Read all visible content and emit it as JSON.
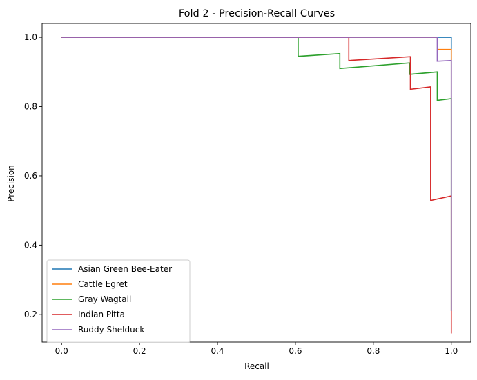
{
  "chart_data": {
    "type": "line",
    "title": "Fold 2 - Precision-Recall Curves",
    "xlabel": "Recall",
    "ylabel": "Precision",
    "xlim": [
      -0.05,
      1.05
    ],
    "ylim": [
      0.12,
      1.04
    ],
    "xticks": [
      0.0,
      0.2,
      0.4,
      0.6,
      0.8,
      1.0
    ],
    "xtick_labels": [
      "0.0",
      "0.2",
      "0.4",
      "0.6",
      "0.8",
      "1.0"
    ],
    "yticks": [
      0.2,
      0.4,
      0.6,
      0.8,
      1.0
    ],
    "ytick_labels": [
      "0.2",
      "0.4",
      "0.6",
      "0.8",
      "1.0"
    ],
    "grid": false,
    "legend_position": "bottom-left",
    "series": [
      {
        "name": "Asian Green Bee-Eater",
        "color": "#1f77b4",
        "points": [
          [
            0.0,
            1.0
          ],
          [
            1.0,
            1.0
          ],
          [
            1.0,
            0.21
          ]
        ]
      },
      {
        "name": "Cattle Egret",
        "color": "#ff7f0e",
        "points": [
          [
            0.0,
            1.0
          ],
          [
            0.965,
            1.0
          ],
          [
            0.965,
            0.965
          ],
          [
            1.0,
            0.965
          ],
          [
            1.0,
            0.21
          ]
        ]
      },
      {
        "name": "Gray Wagtail",
        "color": "#2ca02c",
        "points": [
          [
            0.0,
            1.0
          ],
          [
            0.607,
            1.0
          ],
          [
            0.607,
            0.945
          ],
          [
            0.714,
            0.953
          ],
          [
            0.714,
            0.91
          ],
          [
            0.893,
            0.926
          ],
          [
            0.893,
            0.893
          ],
          [
            0.964,
            0.9
          ],
          [
            0.964,
            0.818
          ],
          [
            1.0,
            0.823
          ],
          [
            1.0,
            0.21
          ]
        ]
      },
      {
        "name": "Indian Pitta",
        "color": "#d62728",
        "points": [
          [
            0.0,
            1.0
          ],
          [
            0.737,
            1.0
          ],
          [
            0.737,
            0.933
          ],
          [
            0.895,
            0.944
          ],
          [
            0.895,
            0.85
          ],
          [
            0.947,
            0.857
          ],
          [
            0.947,
            0.529
          ],
          [
            1.0,
            0.542
          ],
          [
            1.0,
            0.145
          ]
        ]
      },
      {
        "name": "Ruddy Shelduck",
        "color": "#9467bd",
        "points": [
          [
            0.0,
            1.0
          ],
          [
            0.964,
            1.0
          ],
          [
            0.964,
            0.931
          ],
          [
            1.0,
            0.933
          ],
          [
            1.0,
            0.21
          ]
        ]
      }
    ]
  }
}
